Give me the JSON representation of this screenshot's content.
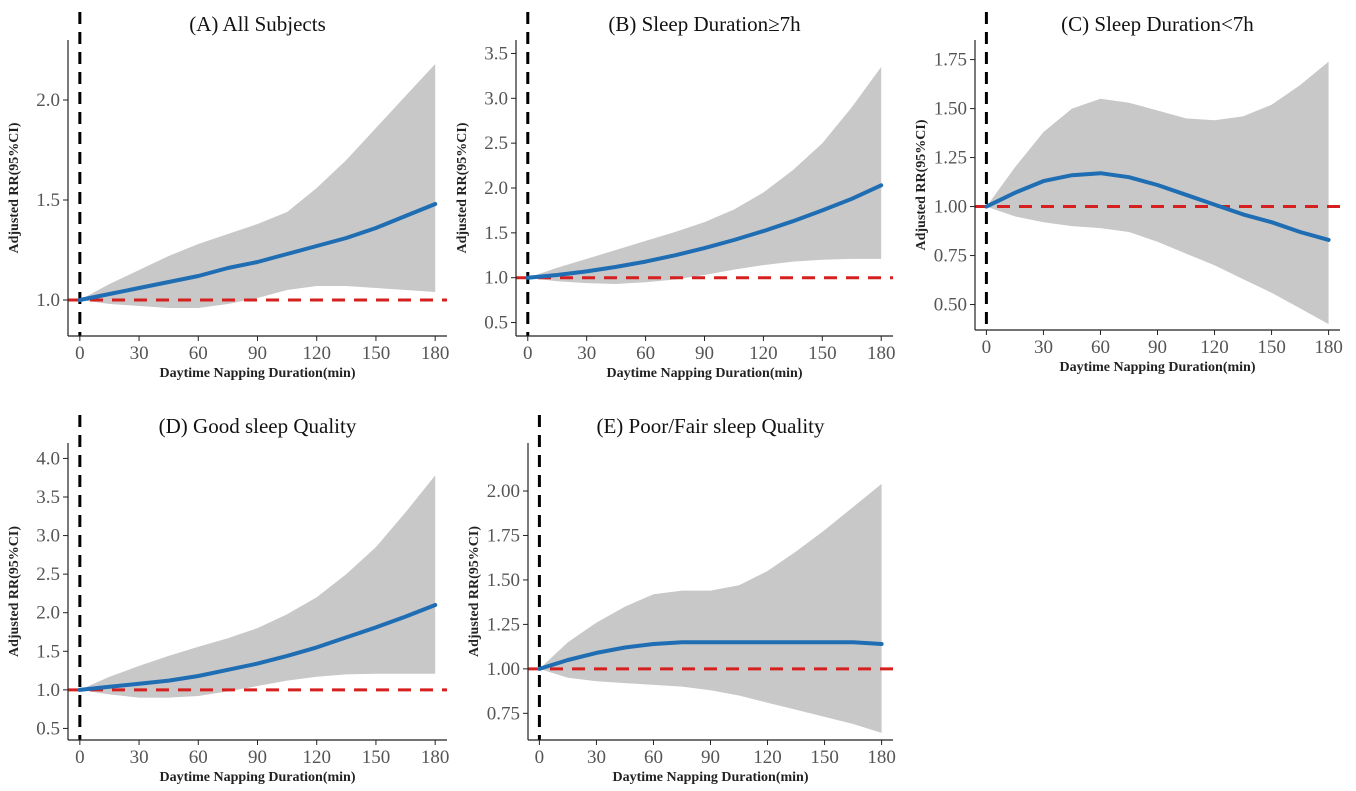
{
  "chart_data": [
    {
      "type": "line",
      "title": "(A) All Subjects",
      "xlabel": "Daytime Napping Duration(min)",
      "ylabel": "Adjusted RR(95%CI)",
      "xlim": [
        -6,
        186
      ],
      "ylim": [
        0.82,
        2.3
      ],
      "xticks": [
        0,
        30,
        60,
        90,
        120,
        150,
        180
      ],
      "yticks": [
        1.0,
        1.5,
        2.0
      ],
      "ytick_labels": [
        "1.0",
        "1.5",
        "2.0"
      ],
      "reference_y": 1.0,
      "reference_x": 0,
      "x": [
        0,
        15,
        30,
        45,
        60,
        75,
        90,
        105,
        120,
        135,
        150,
        165,
        180
      ],
      "estimate": [
        1.0,
        1.03,
        1.06,
        1.09,
        1.12,
        1.16,
        1.19,
        1.23,
        1.27,
        1.31,
        1.36,
        1.42,
        1.48
      ],
      "ci_lower": [
        1.0,
        0.98,
        0.97,
        0.96,
        0.96,
        0.98,
        1.01,
        1.05,
        1.07,
        1.07,
        1.06,
        1.05,
        1.04
      ],
      "ci_upper": [
        1.0,
        1.08,
        1.15,
        1.22,
        1.28,
        1.33,
        1.38,
        1.44,
        1.56,
        1.7,
        1.86,
        2.02,
        2.18
      ],
      "colors": {
        "line": "#1f6db3",
        "band": "#c8c8c8",
        "ref_h": "#d62020",
        "ref_v": "#000000"
      }
    },
    {
      "type": "line",
      "title": "(B) Sleep Duration≥7h",
      "xlabel": "Daytime Napping Duration(min)",
      "ylabel": "Adjusted RR(95%CI)",
      "xlim": [
        -6,
        186
      ],
      "ylim": [
        0.35,
        3.65
      ],
      "xticks": [
        0,
        30,
        60,
        90,
        120,
        150,
        180
      ],
      "yticks": [
        0.5,
        1.0,
        1.5,
        2.0,
        2.5,
        3.0,
        3.5
      ],
      "ytick_labels": [
        "0.5",
        "1.0",
        "1.5",
        "2.0",
        "2.5",
        "3.0",
        "3.5"
      ],
      "reference_y": 1.0,
      "reference_x": 0,
      "x": [
        0,
        15,
        30,
        45,
        60,
        75,
        90,
        105,
        120,
        135,
        150,
        165,
        180
      ],
      "estimate": [
        1.0,
        1.03,
        1.07,
        1.12,
        1.18,
        1.25,
        1.33,
        1.42,
        1.52,
        1.63,
        1.75,
        1.88,
        2.03
      ],
      "ci_lower": [
        1.0,
        0.96,
        0.94,
        0.93,
        0.95,
        0.98,
        1.03,
        1.09,
        1.14,
        1.18,
        1.2,
        1.21,
        1.21
      ],
      "ci_upper": [
        1.0,
        1.11,
        1.21,
        1.31,
        1.41,
        1.51,
        1.62,
        1.76,
        1.95,
        2.2,
        2.5,
        2.9,
        3.35
      ],
      "colors": {
        "line": "#1f6db3",
        "band": "#c8c8c8",
        "ref_h": "#d62020",
        "ref_v": "#000000"
      }
    },
    {
      "type": "line",
      "title": "(C) Sleep Duration<7h",
      "xlabel": "Daytime Napping Duration(min)",
      "ylabel": "Adjusted RR(95%CI)",
      "xlim": [
        -6,
        186
      ],
      "ylim": [
        0.37,
        1.85
      ],
      "xticks": [
        0,
        30,
        60,
        90,
        120,
        150,
        180
      ],
      "yticks": [
        0.5,
        0.75,
        1.0,
        1.25,
        1.5,
        1.75
      ],
      "ytick_labels": [
        "0.50",
        "0.75",
        "1.00",
        "1.25",
        "1.50",
        "1.75"
      ],
      "reference_y": 1.0,
      "reference_x": 0,
      "x": [
        0,
        15,
        30,
        45,
        60,
        75,
        90,
        105,
        120,
        135,
        150,
        165,
        180
      ],
      "estimate": [
        1.0,
        1.07,
        1.13,
        1.16,
        1.17,
        1.15,
        1.11,
        1.06,
        1.01,
        0.96,
        0.92,
        0.87,
        0.83
      ],
      "ci_lower": [
        1.0,
        0.95,
        0.92,
        0.9,
        0.89,
        0.87,
        0.82,
        0.76,
        0.7,
        0.63,
        0.56,
        0.48,
        0.4
      ],
      "ci_upper": [
        1.0,
        1.2,
        1.38,
        1.5,
        1.55,
        1.53,
        1.49,
        1.45,
        1.44,
        1.46,
        1.52,
        1.62,
        1.74
      ],
      "colors": {
        "line": "#1f6db3",
        "band": "#c8c8c8",
        "ref_h": "#d62020",
        "ref_v": "#000000"
      }
    },
    {
      "type": "line",
      "title": "(D) Good sleep Quality",
      "xlabel": "Daytime Napping Duration(min)",
      "ylabel": "Adjusted RR(95%CI)",
      "xlim": [
        -6,
        186
      ],
      "ylim": [
        0.35,
        4.2
      ],
      "xticks": [
        0,
        30,
        60,
        90,
        120,
        150,
        180
      ],
      "yticks": [
        0.5,
        1.0,
        1.5,
        2.0,
        2.5,
        3.0,
        3.5,
        4.0
      ],
      "ytick_labels": [
        "0.5",
        "1.0",
        "1.5",
        "2.0",
        "2.5",
        "3.0",
        "3.5",
        "4.0"
      ],
      "reference_y": 1.0,
      "reference_x": 0,
      "x": [
        0,
        15,
        30,
        45,
        60,
        75,
        90,
        105,
        120,
        135,
        150,
        165,
        180
      ],
      "estimate": [
        1.0,
        1.04,
        1.08,
        1.12,
        1.18,
        1.26,
        1.34,
        1.44,
        1.55,
        1.68,
        1.81,
        1.95,
        2.1
      ],
      "ci_lower": [
        1.0,
        0.94,
        0.9,
        0.9,
        0.92,
        0.98,
        1.05,
        1.12,
        1.17,
        1.2,
        1.21,
        1.21,
        1.21
      ],
      "ci_upper": [
        1.0,
        1.17,
        1.31,
        1.44,
        1.56,
        1.67,
        1.8,
        1.98,
        2.2,
        2.5,
        2.85,
        3.3,
        3.78
      ],
      "colors": {
        "line": "#1f6db3",
        "band": "#c8c8c8",
        "ref_h": "#d62020",
        "ref_v": "#000000"
      }
    },
    {
      "type": "line",
      "title": "(E) Poor/Fair sleep Quality",
      "xlabel": "Daytime Napping Duration(min)",
      "ylabel": "Adjusted RR(95%CI)",
      "xlim": [
        -6,
        186
      ],
      "ylim": [
        0.6,
        2.27
      ],
      "xticks": [
        0,
        30,
        60,
        90,
        120,
        150,
        180
      ],
      "yticks": [
        0.75,
        1.0,
        1.25,
        1.5,
        1.75,
        2.0
      ],
      "ytick_labels": [
        "0.75",
        "1.00",
        "1.25",
        "1.50",
        "1.75",
        "2.00"
      ],
      "reference_y": 1.0,
      "reference_x": 0,
      "x": [
        0,
        15,
        30,
        45,
        60,
        75,
        90,
        105,
        120,
        135,
        150,
        165,
        180
      ],
      "estimate": [
        1.0,
        1.05,
        1.09,
        1.12,
        1.14,
        1.15,
        1.15,
        1.15,
        1.15,
        1.15,
        1.15,
        1.15,
        1.14
      ],
      "ci_lower": [
        1.0,
        0.95,
        0.93,
        0.92,
        0.91,
        0.9,
        0.88,
        0.85,
        0.81,
        0.77,
        0.73,
        0.69,
        0.64
      ],
      "ci_upper": [
        1.0,
        1.15,
        1.26,
        1.35,
        1.42,
        1.44,
        1.44,
        1.47,
        1.55,
        1.66,
        1.78,
        1.91,
        2.04
      ],
      "colors": {
        "line": "#1f6db3",
        "band": "#c8c8c8",
        "ref_h": "#d62020",
        "ref_v": "#000000"
      }
    }
  ]
}
